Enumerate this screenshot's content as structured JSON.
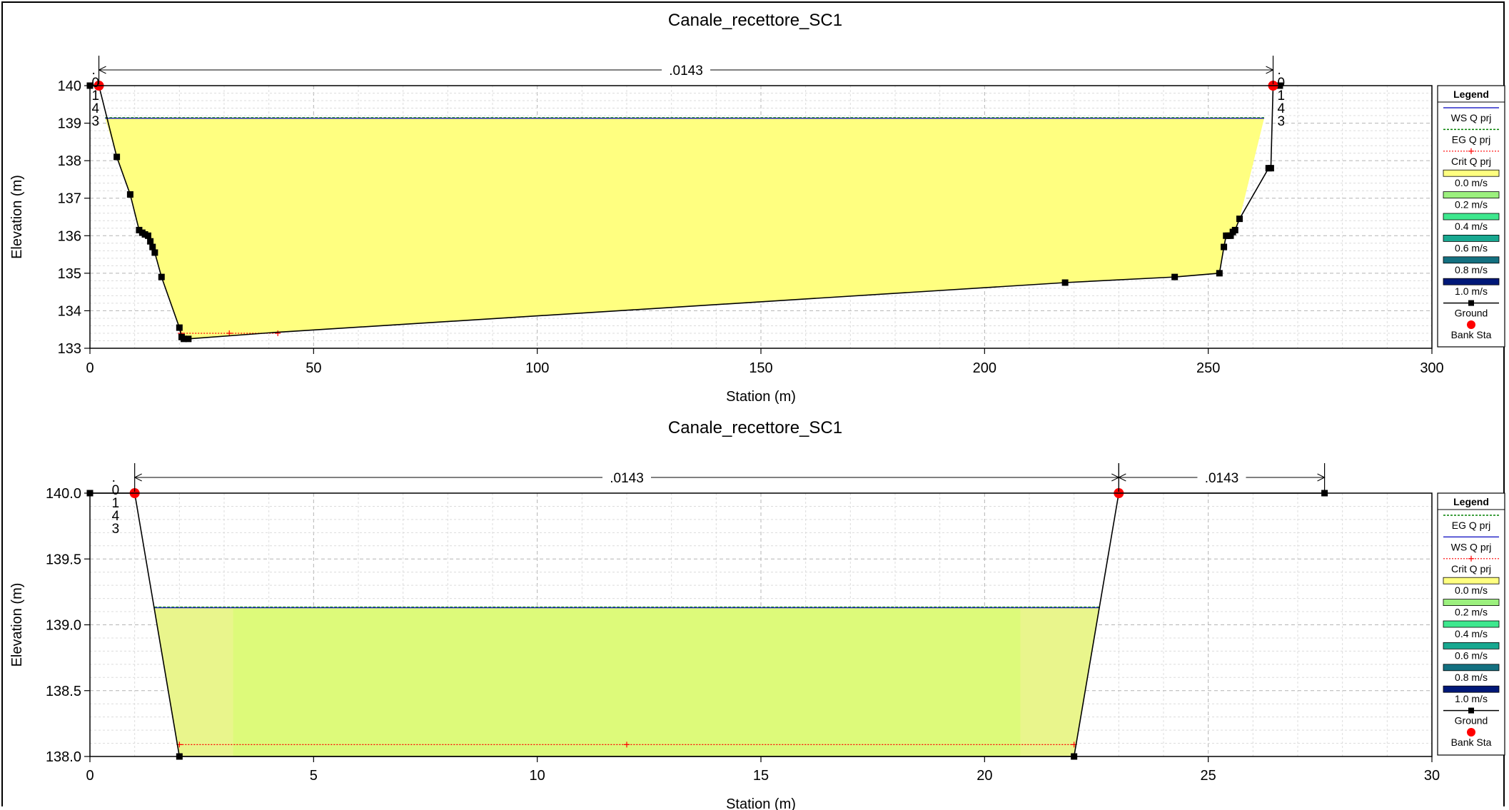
{
  "chart_data": [
    {
      "type": "area",
      "title": "Canale_recettore_SC1",
      "xlabel": "Station (m)",
      "ylabel": "Elevation (m)",
      "xlim": [
        0,
        300
      ],
      "ylim": [
        133,
        140
      ],
      "x_ticks": [
        "0",
        "50",
        "100",
        "150",
        "200",
        "250",
        "300"
      ],
      "y_ticks": [
        "133",
        "134",
        "135",
        "136",
        "137",
        "138",
        "139",
        "140"
      ],
      "grid": true,
      "legend_position": "right",
      "manning_segments": [
        {
          "label": ".0143",
          "from": 2,
          "to": 264.5
        }
      ],
      "bank_label_lines": [
        ".",
        "0",
        "1",
        "4",
        "3"
      ],
      "ground": {
        "x": [
          0,
          2,
          6,
          9,
          11,
          12,
          13,
          14,
          14.5,
          16,
          20,
          20.5,
          21,
          22,
          41,
          218,
          242.5,
          252.5,
          253.5,
          254,
          255,
          255.5,
          256,
          257,
          263.5,
          264,
          264.5,
          266
        ],
        "y": [
          140,
          140,
          138.1,
          137.1,
          136.15,
          136.05,
          136.0,
          135.7,
          135.55,
          134.9,
          133.55,
          133.3,
          133.25,
          133.25,
          133.42,
          134.75,
          134.9,
          135.0,
          135.7,
          136.0,
          136.0,
          136.1,
          136.15,
          136.45,
          137.8,
          137.8,
          140,
          140
        ]
      },
      "ground_markers_x": [
        0,
        6,
        9,
        11,
        11.7,
        12.3,
        13,
        13.5,
        14,
        14.5,
        16,
        20,
        20.5,
        21,
        22,
        218,
        242.5,
        252.5,
        253.5,
        254,
        254.5,
        255,
        255.5,
        256,
        257,
        263.5,
        264,
        266
      ],
      "bank_sta": [
        {
          "x": 2,
          "y": 140
        },
        {
          "x": 264.5,
          "y": 140
        }
      ],
      "water_surface": {
        "elevation": 139.13,
        "x_left": 3.4,
        "x_right": 262.5
      },
      "critical_depth": {
        "elevation": 133.4,
        "x_left": 20.3,
        "x_right": 42
      },
      "colors": {
        "water": "#ffff80",
        "ws_line": "#2828c8",
        "eg_line": "#008000",
        "crit_line": "#ff0000",
        "ground": "#000000",
        "bank": "#ff0000"
      }
    },
    {
      "type": "area",
      "title": "Canale_recettore_SC1",
      "xlabel": "Station (m)",
      "ylabel": "Elevation (m)",
      "xlim": [
        0,
        30
      ],
      "ylim": [
        138.0,
        140.0
      ],
      "x_ticks": [
        "0",
        "5",
        "10",
        "15",
        "20",
        "25",
        "30"
      ],
      "y_ticks": [
        "138.0",
        "138.5",
        "139.0",
        "139.5",
        "140.0"
      ],
      "grid": true,
      "legend_position": "right",
      "manning_segments": [
        {
          "label": ".0143",
          "from": 1,
          "to": 23
        },
        {
          "label": ".0143",
          "from": 23,
          "to": 27.6
        }
      ],
      "bank_label_lines": [
        ".",
        "0",
        "1",
        "4",
        "3"
      ],
      "ground": {
        "x": [
          0,
          1,
          2,
          22,
          23,
          27.6
        ],
        "y": [
          140.0,
          140.0,
          138.0,
          138.0,
          140.0,
          140.0
        ]
      },
      "ground_markers_x": [
        0,
        2,
        22,
        27.6
      ],
      "bank_sta": [
        {
          "x": 1,
          "y": 140.0
        },
        {
          "x": 23,
          "y": 140.0
        }
      ],
      "water_surface": {
        "elevation": 139.13,
        "x_left": 1.44,
        "x_right": 22.56
      },
      "velocity_bands": [
        {
          "from": 1.44,
          "to": 3.2,
          "color": "#e9f58c"
        },
        {
          "from": 3.2,
          "to": 20.8,
          "color": "#ddfa7a"
        },
        {
          "from": 20.8,
          "to": 22.56,
          "color": "#e9f58c"
        }
      ],
      "critical_depth": {
        "elevation": 138.09,
        "x_left": 2.0,
        "x_right": 22.0
      },
      "colors": {
        "water": "#e6f58a",
        "ws_line": "#2828c8",
        "eg_line": "#008000",
        "crit_line": "#ff0000",
        "ground": "#000000",
        "bank": "#ff0000"
      }
    }
  ],
  "legends": [
    {
      "title": "Legend",
      "items": [
        {
          "label": "WS Q prj",
          "kind": "line",
          "color": "#2828c8",
          "dash": false
        },
        {
          "label": "EG Q prj",
          "kind": "line",
          "color": "#008000",
          "dash": true
        },
        {
          "label": "Crit Q prj",
          "kind": "crit",
          "color": "#ff0000"
        },
        {
          "label": "0.0 m/s",
          "kind": "swatch",
          "color": "#ffff80"
        },
        {
          "label": "0.2 m/s",
          "kind": "swatch",
          "color": "#9cf07e"
        },
        {
          "label": "0.4 m/s",
          "kind": "swatch",
          "color": "#3ee88e"
        },
        {
          "label": "0.6 m/s",
          "kind": "swatch",
          "color": "#18a890"
        },
        {
          "label": "0.8 m/s",
          "kind": "swatch",
          "color": "#137080"
        },
        {
          "label": "1.0 m/s",
          "kind": "swatch",
          "color": "#001878"
        },
        {
          "label": "Ground",
          "kind": "ground",
          "color": "#000000"
        },
        {
          "label": "Bank Sta",
          "kind": "bank",
          "color": "#ff0000"
        }
      ]
    },
    {
      "title": "Legend",
      "items": [
        {
          "label": "EG Q prj",
          "kind": "line",
          "color": "#008000",
          "dash": true
        },
        {
          "label": "WS Q prj",
          "kind": "line",
          "color": "#2828c8",
          "dash": false
        },
        {
          "label": "Crit Q prj",
          "kind": "crit",
          "color": "#ff0000"
        },
        {
          "label": "0.0 m/s",
          "kind": "swatch",
          "color": "#ffff80"
        },
        {
          "label": "0.2 m/s",
          "kind": "swatch",
          "color": "#9cf07e"
        },
        {
          "label": "0.4 m/s",
          "kind": "swatch",
          "color": "#3ee88e"
        },
        {
          "label": "0.6 m/s",
          "kind": "swatch",
          "color": "#18a890"
        },
        {
          "label": "0.8 m/s",
          "kind": "swatch",
          "color": "#137080"
        },
        {
          "label": "1.0 m/s",
          "kind": "swatch",
          "color": "#001878"
        },
        {
          "label": "Ground",
          "kind": "ground",
          "color": "#000000"
        },
        {
          "label": "Bank Sta",
          "kind": "bank",
          "color": "#ff0000"
        }
      ]
    }
  ]
}
